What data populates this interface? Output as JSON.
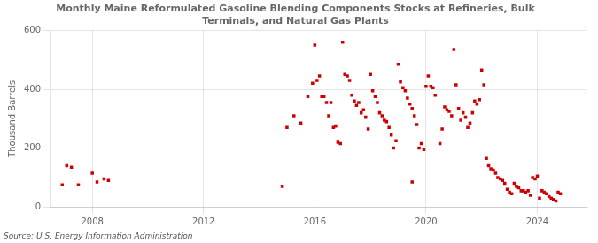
{
  "chart_data": {
    "type": "scatter",
    "title": "Monthly Maine Reformulated Gasoline Blending Components Stocks at Refineries, Bulk\nTerminals, and Natural Gas Plants",
    "ylabel": "Thousand Barrels",
    "annotations": [
      "Source: U.S. Energy Information Administration"
    ],
    "color": "#cc0000",
    "marker": "square",
    "grid": true,
    "xlim": [
      2006.5,
      2025.8
    ],
    "ylim": [
      0,
      600
    ],
    "xticks": [
      2008,
      2012,
      2016,
      2020,
      2024
    ],
    "yticks": [
      0,
      200,
      400,
      600
    ],
    "x": [
      2006.92,
      2007.08,
      2007.25,
      2007.5,
      2008.0,
      2008.17,
      2008.42,
      2008.58,
      2014.83,
      2015.0,
      2015.25,
      2015.5,
      2015.75,
      2015.92,
      2016.0,
      2016.08,
      2016.17,
      2016.25,
      2016.33,
      2016.42,
      2016.5,
      2016.58,
      2016.67,
      2016.75,
      2016.83,
      2016.92,
      2017.0,
      2017.08,
      2017.17,
      2017.25,
      2017.33,
      2017.42,
      2017.5,
      2017.58,
      2017.67,
      2017.75,
      2017.83,
      2017.92,
      2018.0,
      2018.08,
      2018.17,
      2018.25,
      2018.33,
      2018.42,
      2018.5,
      2018.58,
      2018.67,
      2018.75,
      2018.83,
      2018.92,
      2019.0,
      2019.08,
      2019.17,
      2019.25,
      2019.33,
      2019.42,
      2019.5,
      2019.58,
      2019.67,
      2019.75,
      2019.83,
      2019.92,
      2019.5,
      2020.0,
      2020.08,
      2020.17,
      2020.25,
      2020.33,
      2020.5,
      2020.58,
      2020.67,
      2020.75,
      2020.83,
      2020.92,
      2021.0,
      2021.08,
      2021.17,
      2021.25,
      2021.33,
      2021.42,
      2021.5,
      2021.58,
      2021.67,
      2021.75,
      2021.83,
      2021.92,
      2022.0,
      2022.08,
      2022.17,
      2022.25,
      2022.33,
      2022.42,
      2022.5,
      2022.58,
      2022.67,
      2022.75,
      2022.83,
      2022.92,
      2023.0,
      2023.08,
      2023.17,
      2023.25,
      2023.33,
      2023.42,
      2023.5,
      2023.58,
      2023.67,
      2023.75,
      2023.83,
      2023.92,
      2024.0,
      2024.08,
      2024.17,
      2024.25,
      2024.33,
      2024.42,
      2024.5,
      2024.58,
      2024.67,
      2024.75,
      2024.83
    ],
    "values": [
      75,
      140,
      135,
      75,
      115,
      85,
      95,
      90,
      70,
      270,
      310,
      285,
      375,
      420,
      550,
      430,
      445,
      375,
      375,
      355,
      310,
      355,
      270,
      275,
      220,
      215,
      560,
      450,
      445,
      430,
      380,
      360,
      345,
      355,
      320,
      330,
      305,
      265,
      450,
      395,
      375,
      355,
      320,
      310,
      295,
      290,
      270,
      245,
      200,
      225,
      485,
      425,
      405,
      395,
      370,
      350,
      335,
      310,
      280,
      200,
      215,
      195,
      85,
      410,
      445,
      410,
      405,
      380,
      215,
      265,
      340,
      330,
      325,
      310,
      535,
      415,
      335,
      295,
      320,
      305,
      270,
      285,
      320,
      360,
      350,
      365,
      465,
      415,
      165,
      140,
      130,
      125,
      115,
      100,
      95,
      90,
      80,
      60,
      50,
      45,
      80,
      70,
      65,
      55,
      55,
      50,
      55,
      40,
      100,
      95,
      105,
      30,
      55,
      50,
      45,
      35,
      30,
      25,
      20,
      50,
      45
    ]
  }
}
